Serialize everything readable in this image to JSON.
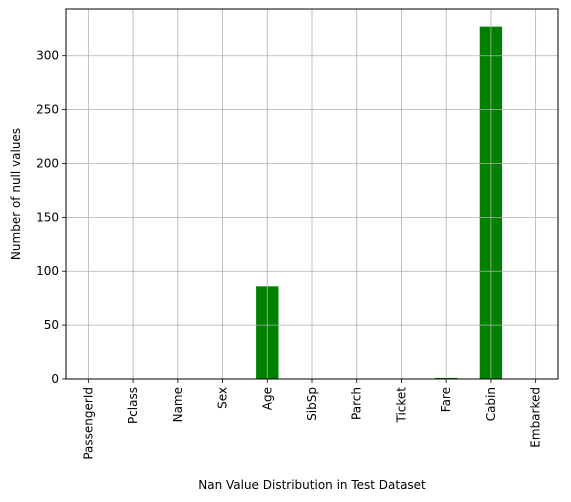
{
  "chart_data": {
    "type": "bar",
    "categories": [
      "PassengerId",
      "Pclass",
      "Name",
      "Sex",
      "Age",
      "SibSp",
      "Parch",
      "Ticket",
      "Fare",
      "Cabin",
      "Embarked"
    ],
    "values": [
      0,
      0,
      0,
      0,
      86,
      0,
      0,
      0,
      1,
      327,
      0
    ],
    "xlabel": "Nan Value Distribution in Test Dataset",
    "ylabel": "Number of null values",
    "ylim": [
      0,
      343.35
    ],
    "yticks": [
      0,
      50,
      100,
      150,
      200,
      250,
      300
    ],
    "grid": true,
    "bar_color": "#008000",
    "grid_color": "#b0b0b0"
  }
}
